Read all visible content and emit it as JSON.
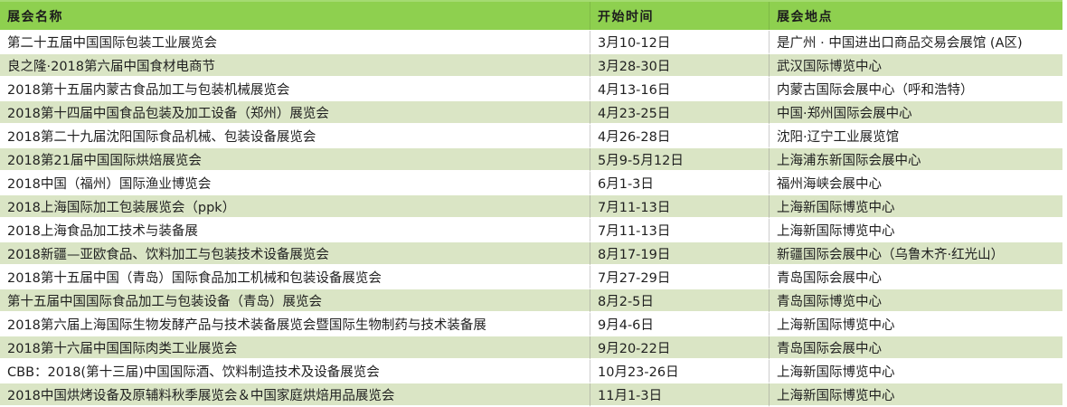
{
  "colors": {
    "header_bg": "#8ed04f",
    "header_top_edge": "#a5db72",
    "band_bg": "#dae5c5",
    "plain_bg": "#ffffff",
    "text": "#1f1f1f",
    "grid": "#bdbdbd"
  },
  "table": {
    "columns": [
      {
        "label": "展会名称"
      },
      {
        "label": "开始时间"
      },
      {
        "label": "展会地点"
      }
    ],
    "rows": [
      {
        "name": "第二十五届中国国际包装工业展览会",
        "date": "3月10-12日",
        "location": "是广州 · 中国进出口商品交易会展馆 (A区)"
      },
      {
        "name": "良之隆·2018第六届中国食材电商节",
        "date": "3月28-30日",
        "location": "武汉国际博览中心"
      },
      {
        "name": "2018第十五届内蒙古食品加工与包装机械展览会",
        "date": "4月13-16日",
        "location": "内蒙古国际会展中心（呼和浩特）"
      },
      {
        "name": "2018第十四届中国食品包装及加工设备（郑州）展览会",
        "date": "4月23-25日",
        "location": "中国·郑州国际会展中心"
      },
      {
        "name": "2018第二十九届沈阳国际食品机械、包装设备展览会",
        "date": "4月26-28日",
        "location": "沈阳·辽宁工业展览馆"
      },
      {
        "name": "2018第21届中国国际烘焙展览会",
        "date": "5月9-5月12日",
        "location": "上海浦东新国际会展中心"
      },
      {
        "name": "2018中国（福州）国际渔业博览会",
        "date": "6月1-3日",
        "location": "福州海峡会展中心"
      },
      {
        "name": "2018上海国际加工包装展览会（ppk）",
        "date": "7月11-13日",
        "location": "上海新国际博览中心"
      },
      {
        "name": "2018上海食品加工技术与装备展",
        "date": "7月11-13日",
        "location": "上海新国际博览中心"
      },
      {
        "name": "2018新疆—亚欧食品、饮料加工与包装技术设备展览会",
        "date": "8月17-19日",
        "location": "新疆国际会展中心（乌鲁木齐·红光山）"
      },
      {
        "name": "2018第十五届中国（青岛）国际食品加工机械和包装设备展览会",
        "date": "7月27-29日",
        "location": "青岛国际会展中心"
      },
      {
        "name": "第十五届中国国际食品加工与包装设备（青岛）展览会",
        "date": "8月2-5日",
        "location": "青岛国际博览中心"
      },
      {
        "name": "2018第六届上海国际生物发酵产品与技术装备展览会暨国际生物制药与技术装备展",
        "date": "9月4-6日",
        "location": "上海新国际博览中心"
      },
      {
        "name": "2018第十六届中国国际肉类工业展览会",
        "date": "9月20-22日",
        "location": "青岛国际会展中心"
      },
      {
        "name": "CBB：2018(第十三届)中国国际酒、饮料制造技术及设备展览会",
        "date": "10月23-26日",
        "location": "上海新国际博览中心"
      },
      {
        "name": "2018中国烘烤设备及原辅料秋季展览会＆中国家庭烘焙用品展览会",
        "date": "11月1-3日",
        "location": "上海新国际博览中心"
      }
    ]
  }
}
